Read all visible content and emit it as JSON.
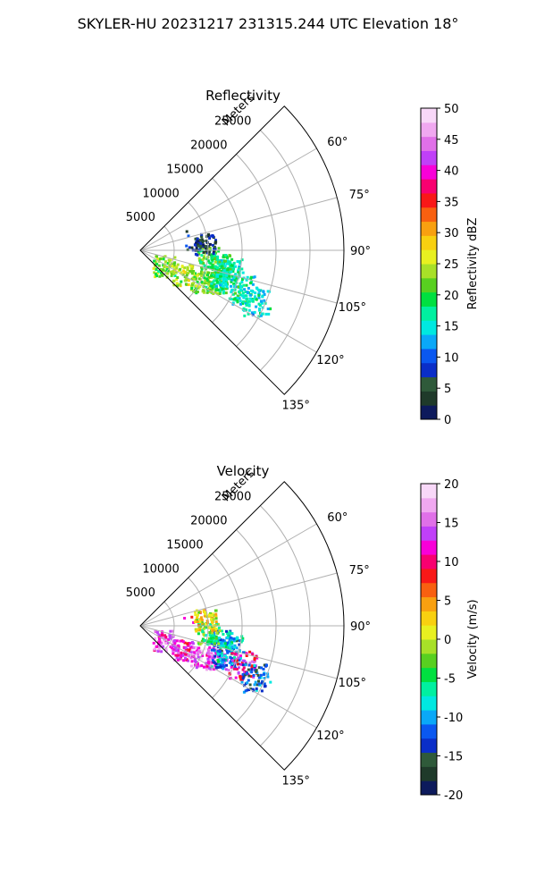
{
  "figure_title": "SKYLER-HU  20231217  231315.244 UTC Elevation 18°",
  "chart_data": [
    {
      "type": "polar-ppi",
      "title": "Reflectivity",
      "radial_label": "Meters",
      "r_max": 30000,
      "r_ticks": [
        5000,
        10000,
        15000,
        20000,
        25000
      ],
      "theta_min_deg": 45,
      "theta_max_deg": 135,
      "theta_ticks": [
        60,
        75,
        90,
        105,
        120,
        135
      ],
      "theta_tick_labels": [
        "60°",
        "75°",
        "90°",
        "105°",
        "120°",
        "135°"
      ],
      "grid": true,
      "colorbar": {
        "label": "Reflectivity dBZ",
        "min": 0,
        "max": 50,
        "ticks": [
          0,
          5,
          10,
          15,
          20,
          25,
          30,
          35,
          40,
          45,
          50
        ],
        "colors": [
          "#0d1a5c",
          "#1f3a2a",
          "#2f5a3a",
          "#0a2ec8",
          "#0a58f0",
          "#0aa8f8",
          "#00e8e0",
          "#00f0a0",
          "#00e040",
          "#58d020",
          "#a8e028",
          "#e8f020",
          "#f8d010",
          "#f8a010",
          "#f86010",
          "#f81818",
          "#f80070",
          "#f800d8",
          "#c040f8",
          "#e070e8",
          "#f0a8f0",
          "#f8d8f8"
        ]
      },
      "echo_clusters": [
        {
          "theta_deg": 123,
          "r": 4000,
          "value": 22
        },
        {
          "theta_deg": 120,
          "r": 7000,
          "value": 24
        },
        {
          "theta_deg": 117,
          "r": 10000,
          "value": 22
        },
        {
          "theta_deg": 113,
          "r": 12000,
          "value": 20
        },
        {
          "theta_deg": 108,
          "r": 13000,
          "value": 18
        },
        {
          "theta_deg": 104,
          "r": 13500,
          "value": 16
        },
        {
          "theta_deg": 100,
          "r": 12000,
          "value": 18
        },
        {
          "theta_deg": 96,
          "r": 10000,
          "value": 20
        },
        {
          "theta_deg": 111,
          "r": 16000,
          "value": 17
        },
        {
          "theta_deg": 114,
          "r": 18500,
          "value": 15
        },
        {
          "theta_deg": 79,
          "r": 8000,
          "value": 6
        },
        {
          "theta_deg": 84,
          "r": 9500,
          "value": 5
        }
      ]
    },
    {
      "type": "polar-ppi",
      "title": "Velocity",
      "radial_label": "Meters",
      "r_max": 30000,
      "r_ticks": [
        5000,
        10000,
        15000,
        20000,
        25000
      ],
      "theta_min_deg": 45,
      "theta_max_deg": 135,
      "theta_ticks": [
        60,
        75,
        90,
        105,
        120,
        135
      ],
      "theta_tick_labels": [
        "60°",
        "75°",
        "90°",
        "105°",
        "120°",
        "135°"
      ],
      "grid": true,
      "colorbar": {
        "label": "Velocity (m/s)",
        "min": -20,
        "max": 20,
        "ticks": [
          -20,
          -15,
          -10,
          -5,
          0,
          5,
          10,
          15,
          20
        ],
        "colors": [
          "#0d1a5c",
          "#1f3a2a",
          "#2f5a3a",
          "#0a2ec8",
          "#0a58f0",
          "#0aa8f8",
          "#00e8e0",
          "#00f0a0",
          "#00e040",
          "#58d020",
          "#a8e028",
          "#e8f020",
          "#f8d010",
          "#f8a010",
          "#f86010",
          "#f81818",
          "#f80070",
          "#f800d8",
          "#c040f8",
          "#e070e8",
          "#f0a8f0",
          "#f8d8f8"
        ]
      },
      "echo_clusters": [
        {
          "theta_deg": 123,
          "r": 4000,
          "value": 14
        },
        {
          "theta_deg": 120,
          "r": 7000,
          "value": 12
        },
        {
          "theta_deg": 117,
          "r": 10000,
          "value": 15
        },
        {
          "theta_deg": 113,
          "r": 12000,
          "value": 14
        },
        {
          "theta_deg": 108,
          "r": 13000,
          "value": -11
        },
        {
          "theta_deg": 104,
          "r": 13500,
          "value": -8
        },
        {
          "theta_deg": 100,
          "r": 12000,
          "value": -9
        },
        {
          "theta_deg": 96,
          "r": 10000,
          "value": -4
        },
        {
          "theta_deg": 111,
          "r": 16000,
          "value": 11
        },
        {
          "theta_deg": 114,
          "r": 18500,
          "value": -12
        },
        {
          "theta_deg": 79,
          "r": 8000,
          "value": 9
        },
        {
          "theta_deg": 84,
          "r": 9500,
          "value": 1
        }
      ]
    }
  ]
}
